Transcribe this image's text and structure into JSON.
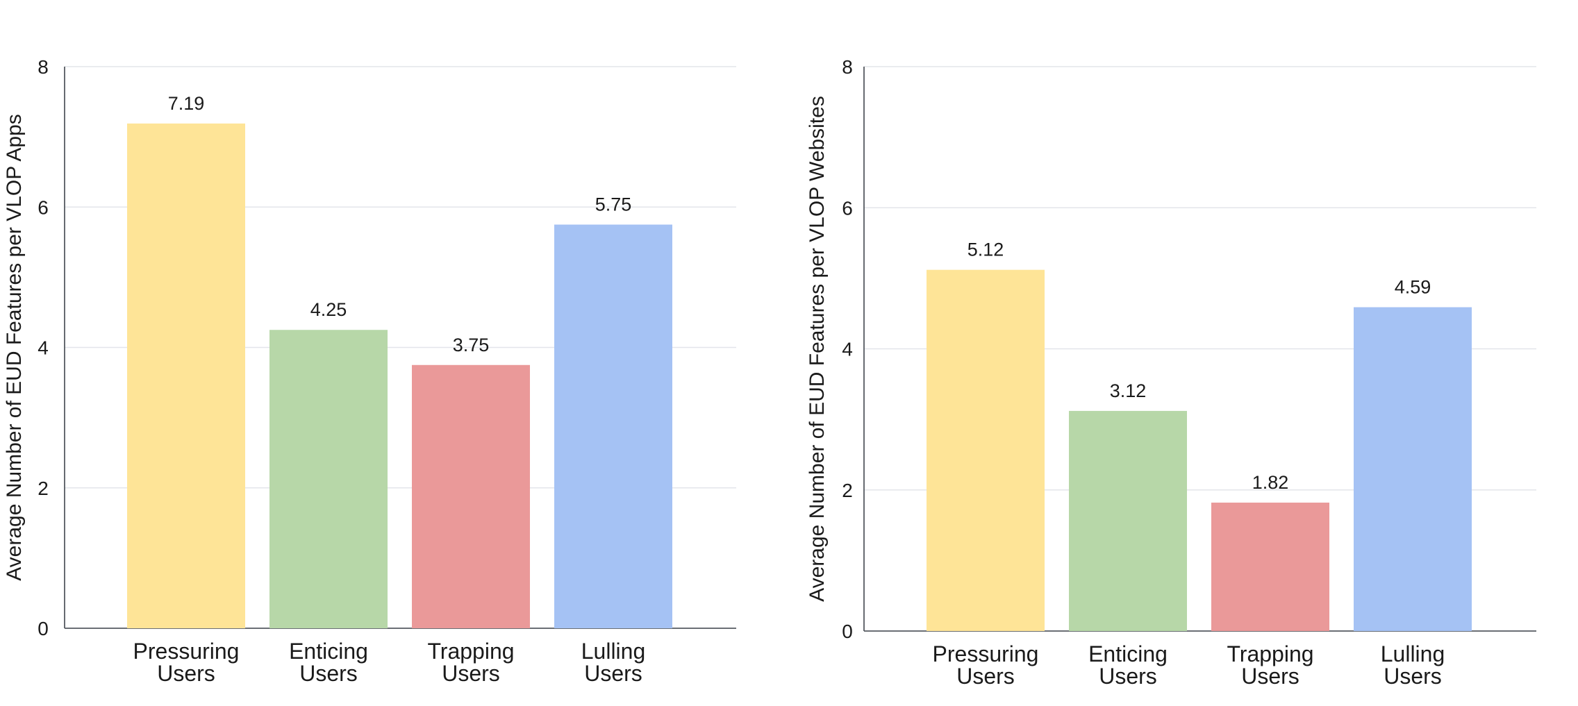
{
  "chart_data": [
    {
      "type": "bar",
      "categories": [
        [
          "Pressuring",
          "Users"
        ],
        [
          "Enticing",
          "Users"
        ],
        [
          "Trapping",
          "Users"
        ],
        [
          "Lulling",
          "Users"
        ]
      ],
      "values": [
        7.19,
        4.25,
        3.75,
        5.75
      ],
      "value_labels": [
        "7.19",
        "4.25",
        "3.75",
        "5.75"
      ],
      "colors": [
        "#fee497",
        "#b7d7a8",
        "#ea9999",
        "#a5c2f4"
      ],
      "ylabel": "Average Number of EUD Features per VLOP Apps",
      "xlabel": "",
      "ylim": [
        0,
        8
      ],
      "yticks": [
        "0",
        "2",
        "4",
        "6",
        "8"
      ],
      "grid": true,
      "legend": "none"
    },
    {
      "type": "bar",
      "categories": [
        [
          "Pressuring",
          "Users"
        ],
        [
          "Enticing",
          "Users"
        ],
        [
          "Trapping",
          "Users"
        ],
        [
          "Lulling",
          "Users"
        ]
      ],
      "values": [
        5.12,
        3.12,
        1.82,
        4.59
      ],
      "value_labels": [
        "5.12",
        "3.12",
        "1.82",
        "4.59"
      ],
      "colors": [
        "#fee497",
        "#b7d7a8",
        "#ea9999",
        "#a5c2f4"
      ],
      "ylabel": "Average Number of EUD Features per VLOP Websites",
      "xlabel": "",
      "ylim": [
        0,
        8
      ],
      "yticks": [
        "0",
        "2",
        "4",
        "6",
        "8"
      ],
      "grid": true,
      "legend": "none"
    }
  ]
}
